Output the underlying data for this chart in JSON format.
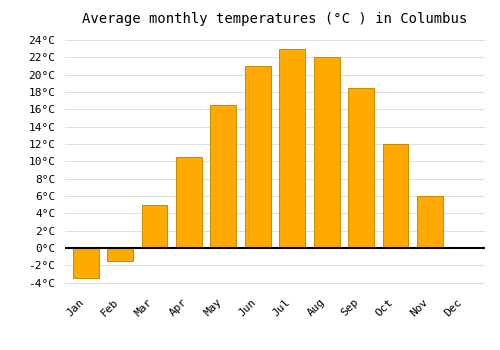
{
  "title": "Average monthly temperatures (°C ) in Columbus",
  "months": [
    "Jan",
    "Feb",
    "Mar",
    "Apr",
    "May",
    "Jun",
    "Jul",
    "Aug",
    "Sep",
    "Oct",
    "Nov",
    "Dec"
  ],
  "values": [
    -3.5,
    -1.5,
    5.0,
    10.5,
    16.5,
    21.0,
    23.0,
    22.0,
    18.5,
    12.0,
    6.0,
    0.0
  ],
  "bar_color": "#FFAA00",
  "bar_edge_color": "#CC8800",
  "ylim": [
    -4.5,
    25
  ],
  "yticks": [
    -4,
    -2,
    0,
    2,
    4,
    6,
    8,
    10,
    12,
    14,
    16,
    18,
    20,
    22,
    24
  ],
  "ytick_labels": [
    "-4°C",
    "-2°C",
    "0°C",
    "2°C",
    "4°C",
    "6°C",
    "8°C",
    "10°C",
    "12°C",
    "14°C",
    "16°C",
    "18°C",
    "20°C",
    "22°C",
    "24°C"
  ],
  "background_color": "#ffffff",
  "grid_color": "#dddddd",
  "title_fontsize": 10,
  "tick_fontsize": 8,
  "bar_width": 0.75
}
